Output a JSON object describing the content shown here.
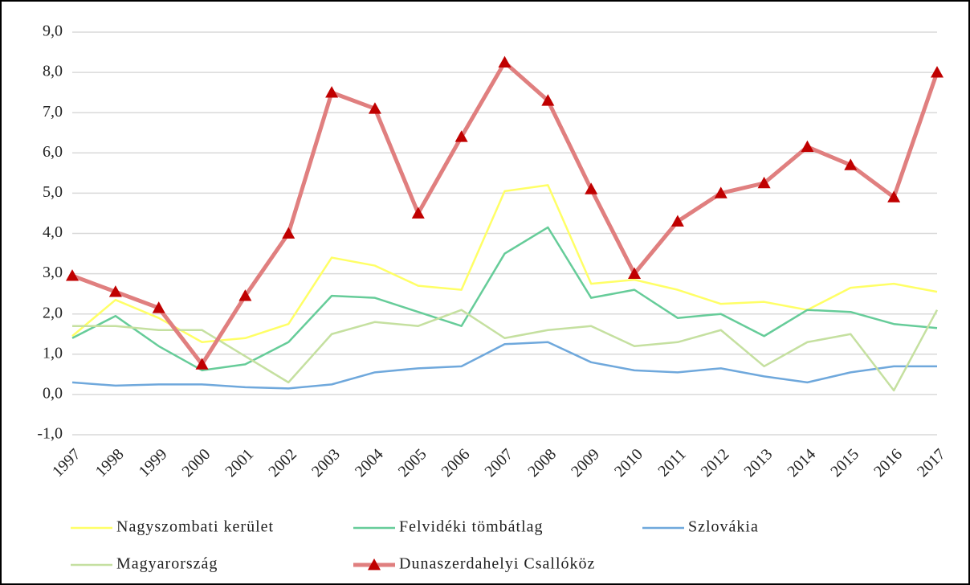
{
  "chart_data": {
    "type": "line",
    "categories": [
      "1997",
      "1998",
      "1999",
      "2000",
      "2001",
      "2002",
      "2003",
      "2004",
      "2005",
      "2006",
      "2007",
      "2008",
      "2009",
      "2010",
      "2011",
      "2012",
      "2013",
      "2014",
      "2015",
      "2016",
      "2017"
    ],
    "series": [
      {
        "name": "Nagyszombati kerület",
        "color": "#ffff66",
        "values": [
          1.45,
          2.35,
          1.9,
          1.3,
          1.4,
          1.75,
          3.4,
          3.2,
          2.7,
          2.6,
          5.05,
          5.2,
          2.75,
          2.85,
          2.6,
          2.25,
          2.3,
          2.1,
          2.65,
          2.75,
          2.55
        ]
      },
      {
        "name": "Felvidéki tömbátlag",
        "color": "#66cc99",
        "values": [
          1.4,
          1.95,
          1.2,
          0.6,
          0.75,
          1.3,
          2.45,
          2.4,
          2.05,
          1.7,
          3.5,
          4.15,
          2.4,
          2.6,
          1.9,
          2.0,
          1.45,
          2.1,
          2.05,
          1.75,
          1.65
        ]
      },
      {
        "name": "Szlovákia",
        "color": "#6fa8dc",
        "values": [
          0.3,
          0.22,
          0.25,
          0.25,
          0.18,
          0.15,
          0.25,
          0.55,
          0.65,
          0.7,
          1.25,
          1.3,
          0.8,
          0.6,
          0.55,
          0.65,
          0.45,
          0.3,
          0.55,
          0.7,
          0.7
        ]
      },
      {
        "name": "Magyarország",
        "color": "#c5e0a0",
        "values": [
          1.7,
          1.7,
          1.6,
          1.6,
          0.95,
          0.3,
          1.5,
          1.8,
          1.7,
          2.1,
          1.4,
          1.6,
          1.7,
          1.2,
          1.3,
          1.6,
          0.7,
          1.3,
          1.5,
          0.1,
          2.1
        ]
      },
      {
        "name": "Dunaszerdahelyi Csallóköz",
        "color": "#e07f7f",
        "marker": "triangle",
        "marker_color": "#c00000",
        "values": [
          2.95,
          2.55,
          2.15,
          0.75,
          2.45,
          4.0,
          7.5,
          7.1,
          4.5,
          6.4,
          8.25,
          7.3,
          5.1,
          3.0,
          4.3,
          5.0,
          5.25,
          6.15,
          5.7,
          4.9,
          8.0
        ]
      }
    ],
    "ylim": [
      -1,
      9
    ],
    "yticks": [
      {
        "value": -1,
        "label": "-1,0"
      },
      {
        "value": 0,
        "label": "0,0"
      },
      {
        "value": 1,
        "label": "1,0"
      },
      {
        "value": 2,
        "label": "2,0"
      },
      {
        "value": 3,
        "label": "3,0"
      },
      {
        "value": 4,
        "label": "4,0"
      },
      {
        "value": 5,
        "label": "5,0"
      },
      {
        "value": 6,
        "label": "6,0"
      },
      {
        "value": 7,
        "label": "7,0"
      },
      {
        "value": 8,
        "label": "8,0"
      },
      {
        "value": 9,
        "label": "9,0"
      }
    ],
    "grid": true,
    "legend": "bottom"
  }
}
